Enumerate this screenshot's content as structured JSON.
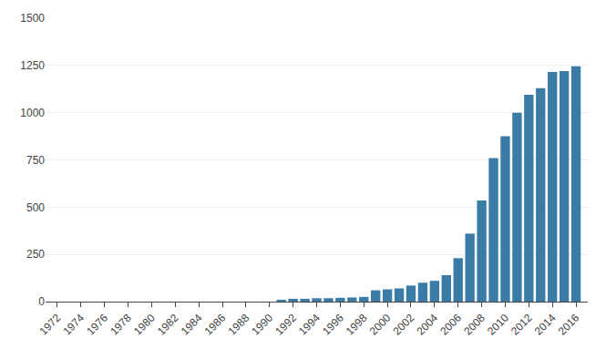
{
  "chart_data": {
    "type": "bar",
    "x": [
      1972,
      1973,
      1974,
      1975,
      1976,
      1977,
      1978,
      1979,
      1980,
      1981,
      1982,
      1983,
      1984,
      1985,
      1986,
      1987,
      1988,
      1989,
      1990,
      1991,
      1992,
      1993,
      1994,
      1995,
      1996,
      1997,
      1998,
      1999,
      2000,
      2001,
      2002,
      2003,
      2004,
      2005,
      2006,
      2007,
      2008,
      2009,
      2010,
      2011,
      2012,
      2013,
      2014,
      2015,
      2016
    ],
    "values": [
      0,
      0,
      0,
      0,
      0,
      0,
      0,
      0,
      0,
      0,
      0,
      0,
      0,
      0,
      0,
      0,
      0,
      0,
      0,
      10,
      15,
      15,
      18,
      18,
      20,
      22,
      25,
      60,
      65,
      70,
      85,
      100,
      110,
      140,
      230,
      360,
      535,
      760,
      875,
      1000,
      1095,
      1130,
      1215,
      1220,
      1245
    ],
    "color": "#3a7ca5",
    "xlim": [
      1971,
      2017
    ],
    "xticks": [
      1972,
      1974,
      1976,
      1978,
      1980,
      1982,
      1984,
      1986,
      1988,
      1990,
      1992,
      1994,
      1996,
      1998,
      2000,
      2002,
      2004,
      2006,
      2008,
      2010,
      2012,
      2014,
      2016
    ],
    "ylim": [
      0,
      1500
    ],
    "yticks": [
      0,
      250,
      500,
      750,
      1000,
      1250,
      1500
    ],
    "grid": true
  }
}
